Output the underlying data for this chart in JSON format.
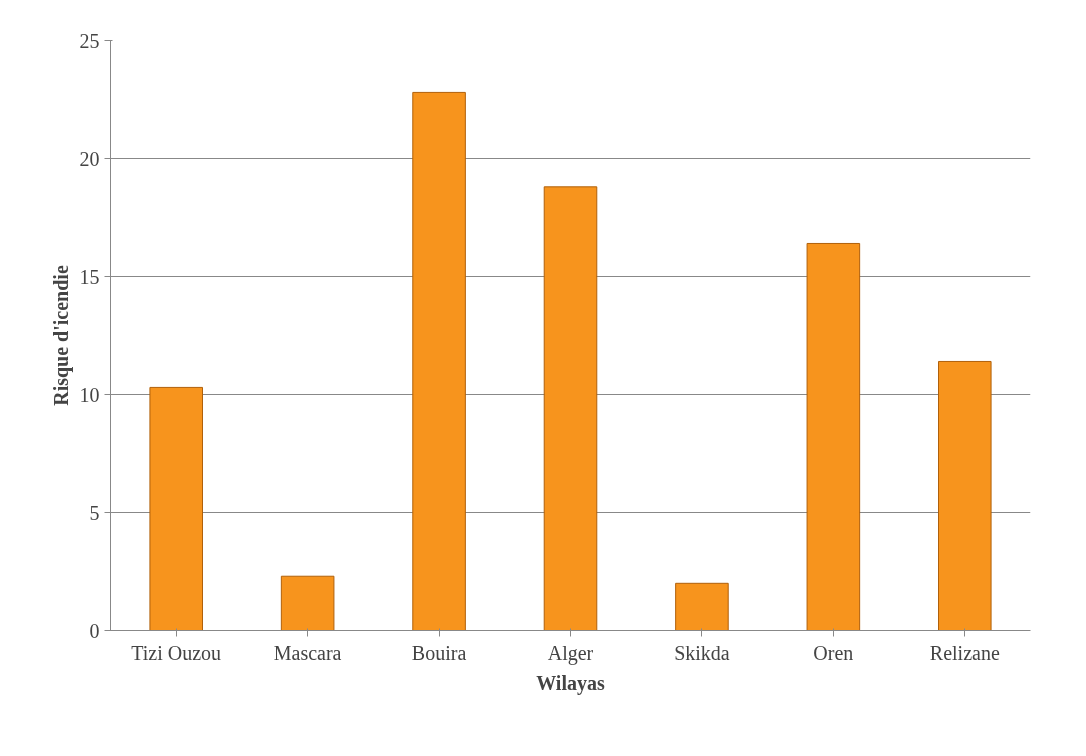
{
  "chart_data": {
    "type": "bar",
    "xlabel": "Wilayas",
    "ylabel": "Risque d'icendie",
    "categories": [
      "Tizi Ouzou",
      "Mascara",
      "Bouira",
      "Alger",
      "Skikda",
      "Oren",
      "Relizane"
    ],
    "values": [
      10.3,
      2.3,
      22.8,
      18.8,
      2.0,
      16.4,
      11.4
    ],
    "color": "#f7941d",
    "ylim": [
      0,
      25
    ],
    "yticks": [
      0,
      5,
      10,
      15,
      20,
      25
    ],
    "grid": "y"
  }
}
